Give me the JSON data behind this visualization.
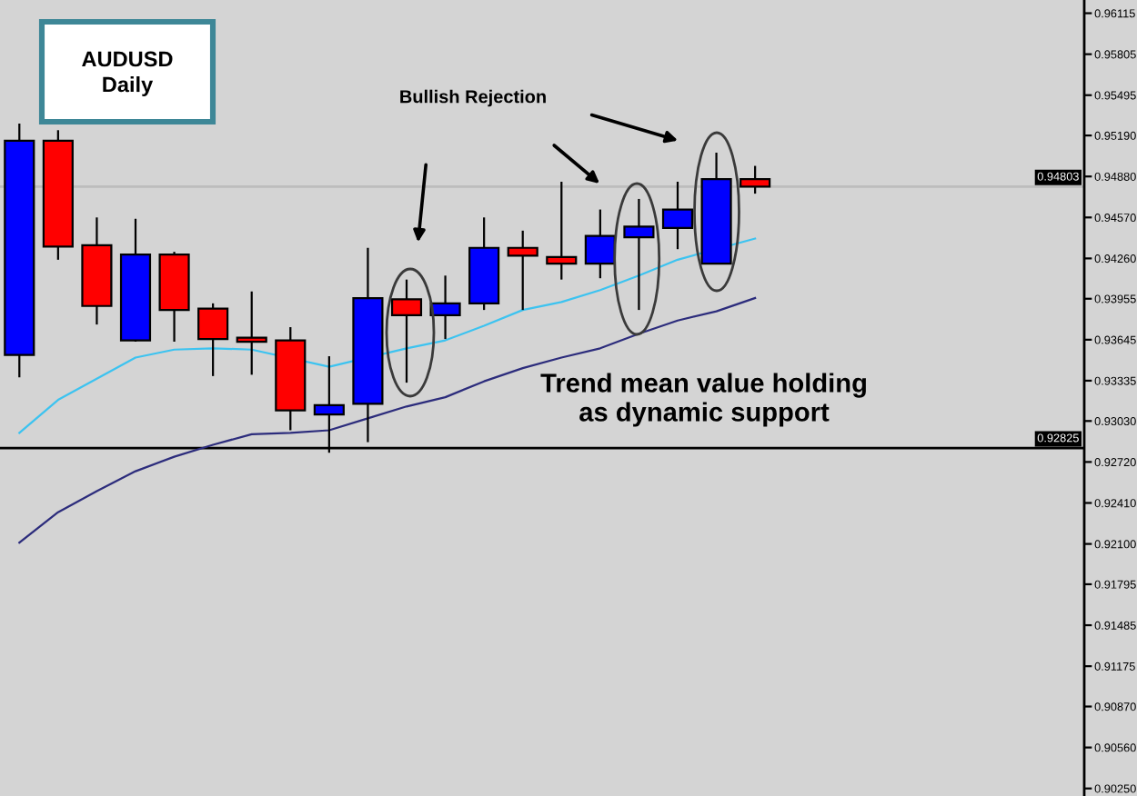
{
  "chart_data": {
    "type": "candlestick",
    "title": "AUDUSD\nDaily",
    "annotations": [
      "Bullish Rejection",
      "Trend mean value holding\nas dynamic support"
    ],
    "categories": [
      null,
      null,
      null,
      null,
      null,
      null,
      null,
      null,
      null,
      null,
      null,
      null,
      null,
      null,
      null,
      null,
      null,
      null,
      null,
      null,
      null,
      null,
      null,
      null,
      null,
      null,
      null,
      null
    ],
    "ohlc": [
      [
        0.9353,
        0.9528,
        0.9336,
        0.9515
      ],
      [
        0.9515,
        0.9523,
        0.9425,
        0.9435
      ],
      [
        0.9436,
        0.9457,
        0.9376,
        0.939
      ],
      [
        0.9364,
        0.9456,
        0.9363,
        0.9429
      ],
      [
        0.9429,
        0.9431,
        0.9363,
        0.9387
      ],
      [
        0.9388,
        0.9392,
        0.9337,
        0.9365
      ],
      [
        0.9366,
        0.9401,
        0.9338,
        0.9363
      ],
      [
        0.9364,
        0.9374,
        0.9296,
        0.9311
      ],
      [
        0.9308,
        0.9352,
        0.9279,
        0.9315
      ],
      [
        0.9316,
        0.9434,
        0.9287,
        0.9396
      ],
      [
        0.9395,
        0.941,
        0.9332,
        0.9383
      ],
      [
        0.9383,
        0.9413,
        0.9365,
        0.9392
      ],
      [
        0.9392,
        0.9457,
        0.9387,
        0.9434
      ],
      [
        0.9434,
        0.9447,
        0.9387,
        0.9428
      ],
      [
        0.9427,
        0.9484,
        0.941,
        0.9422
      ],
      [
        0.9422,
        0.9463,
        0.9411,
        0.9443
      ],
      [
        0.9442,
        0.9471,
        0.9387,
        0.945
      ],
      [
        0.9449,
        0.9484,
        0.9433,
        0.9463
      ],
      [
        0.9422,
        0.9506,
        0.9422,
        0.9486
      ],
      [
        0.9486,
        0.9496,
        0.9475,
        0.94803
      ],
      null,
      null,
      null,
      null,
      null,
      null,
      null,
      null
    ],
    "colors": [
      "#0000ff",
      "#ff0000",
      "#ff0000",
      "#0000ff",
      "#ff0000",
      "#ff0000",
      "#ff0000",
      "#ff0000",
      "#0000ff",
      "#0000ff",
      "#ff0000",
      "#0000ff",
      "#0000ff",
      "#ff0000",
      "#ff0000",
      "#0000ff",
      "#0000ff",
      "#0000ff",
      "#0000ff",
      "#ff0000",
      null,
      null,
      null,
      null,
      null,
      null,
      null,
      null
    ],
    "series": [
      {
        "type": "line",
        "color": "#3cc3f0",
        "values": [
          0.9294,
          0.9319,
          0.9335,
          0.9351,
          0.9357,
          0.9358,
          0.9357,
          null,
          0.9344,
          null,
          0.9358,
          0.9364,
          0.9375,
          0.9387,
          0.9393,
          0.9402,
          0.9413,
          0.9425,
          null,
          0.9441,
          null,
          null,
          null,
          null,
          null,
          null,
          null,
          null
        ]
      },
      {
        "type": "line",
        "color": "#2c2c7c",
        "values": [
          0.9211,
          0.9234,
          0.925,
          0.9265,
          0.9276,
          0.9285,
          0.9293,
          0.9294,
          0.9296,
          0.9305,
          0.9314,
          0.9321,
          0.9333,
          0.9343,
          0.9351,
          0.9358,
          0.9369,
          0.9379,
          0.9386,
          0.9396,
          null,
          null,
          null,
          null,
          null,
          null,
          null,
          null
        ]
      }
    ],
    "ylim": [
      0.90193,
      0.96215
    ],
    "yticks": [
      0.96115,
      0.95805,
      0.95495,
      {
        "value": 0.9519,
        "label": "0.95190"
      },
      {
        "value": 0.9488,
        "label": "0.94880"
      },
      {
        "value": 0.9457,
        "label": "0.94570"
      },
      {
        "value": 0.9426,
        "label": "0.94260"
      },
      0.93955,
      0.93645,
      0.93335,
      {
        "value": 0.9303,
        "label": "0.93030"
      },
      {
        "value": 0.9272,
        "label": "0.92720"
      },
      {
        "value": 0.9241,
        "label": "0.92410"
      },
      {
        "value": 0.921,
        "label": "0.92100"
      },
      0.91795,
      0.91485,
      0.91175,
      {
        "value": 0.9087,
        "label": "0.90870"
      },
      {
        "value": 0.9056,
        "label": "0.90560"
      },
      {
        "value": 0.9025,
        "label": "0.90250"
      }
    ],
    "ref_lines": [
      {
        "axis": "y",
        "value": 0.94803,
        "label": "0.94803",
        "color": "#bdbdbd"
      },
      {
        "axis": "y",
        "value": 0.92825,
        "label": "0.92825",
        "color": "#000000"
      }
    ],
    "tick_labels": "y"
  }
}
